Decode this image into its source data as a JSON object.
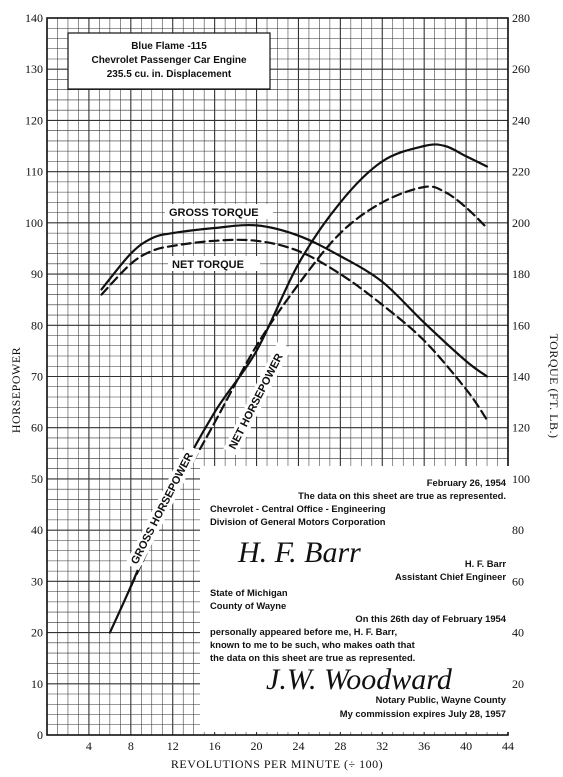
{
  "chart_data": {
    "type": "line",
    "title_lines": [
      "Blue Flame -115",
      "Chevrolet Passenger Car Engine",
      "235.5 cu. in. Displacement"
    ],
    "xlabel": "REVOLUTIONS PER MINUTE (÷ 100)",
    "ylabel_left": "HORSEPOWER",
    "ylabel_right": "TORQUE (FT. LB.)",
    "xlim": [
      0,
      44
    ],
    "ylim_left": [
      0,
      140
    ],
    "ylim_right": [
      0,
      280
    ],
    "x_ticks": [
      "4",
      "8",
      "12",
      "16",
      "20",
      "24",
      "28",
      "32",
      "36",
      "40",
      "44"
    ],
    "y_ticks_left": [
      "0",
      "10",
      "20",
      "30",
      "40",
      "50",
      "60",
      "70",
      "80",
      "90",
      "100",
      "110",
      "120",
      "130",
      "140"
    ],
    "y_ticks_right": [
      "20",
      "40",
      "60",
      "80",
      "100",
      "120",
      "140",
      "160",
      "180",
      "200",
      "220",
      "240",
      "260",
      "280"
    ],
    "grid": true,
    "series": [
      {
        "name": "GROSS TORQUE",
        "axis": "right",
        "style": "solid",
        "x": [
          5.2,
          8,
          10,
          12,
          16,
          20,
          24,
          28,
          32,
          36,
          40,
          42
        ],
        "y": [
          174,
          188,
          194,
          196,
          198,
          199,
          195,
          187,
          177,
          161,
          146,
          140
        ]
      },
      {
        "name": "NET TORQUE",
        "axis": "right",
        "style": "dashed",
        "x": [
          5.2,
          8,
          10,
          12,
          16,
          20,
          24,
          28,
          32,
          36,
          40,
          42
        ],
        "y": [
          172,
          184,
          189,
          191,
          193,
          193,
          189,
          180,
          168,
          154,
          135,
          123
        ]
      },
      {
        "name": "GROSS HORSEPOWER",
        "axis": "left",
        "style": "solid",
        "x": [
          6,
          8,
          12,
          16,
          20,
          24,
          28,
          32,
          36,
          38,
          40,
          42
        ],
        "y": [
          20,
          29,
          48,
          63,
          75,
          92,
          104,
          112,
          115,
          115,
          113,
          111
        ]
      },
      {
        "name": "NET HORSEPOWER",
        "axis": "left",
        "style": "dashed",
        "x": [
          8,
          12,
          16,
          20,
          24,
          28,
          32,
          36,
          38,
          40,
          42
        ],
        "y": [
          29,
          46,
          61,
          76,
          88,
          98,
          104,
          107,
          106,
          103,
          99
        ]
      }
    ]
  },
  "certificate": {
    "lines": [
      "February 26, 1954",
      "The data on this sheet are true as represented.",
      "Chevrolet - Central Office - Engineering",
      "Division of General Motors Corporation",
      "H. F. Barr",
      "Assistant Chief Engineer",
      "State of Michigan",
      "County of Wayne",
      "On this 26th day of February 1954",
      "personally appeared before me, H. F. Barr,",
      "known to me to be such, who makes oath that",
      "the data on this sheet are true as represented.",
      "Notary Public, Wayne County",
      "My commission expires July 28, 1957"
    ],
    "signature_1": "H. F. Barr",
    "signature_2": "J.W. Woodward"
  },
  "colors": {
    "ink": "#111111",
    "grid": "#333333",
    "paper": "#ffffff"
  }
}
